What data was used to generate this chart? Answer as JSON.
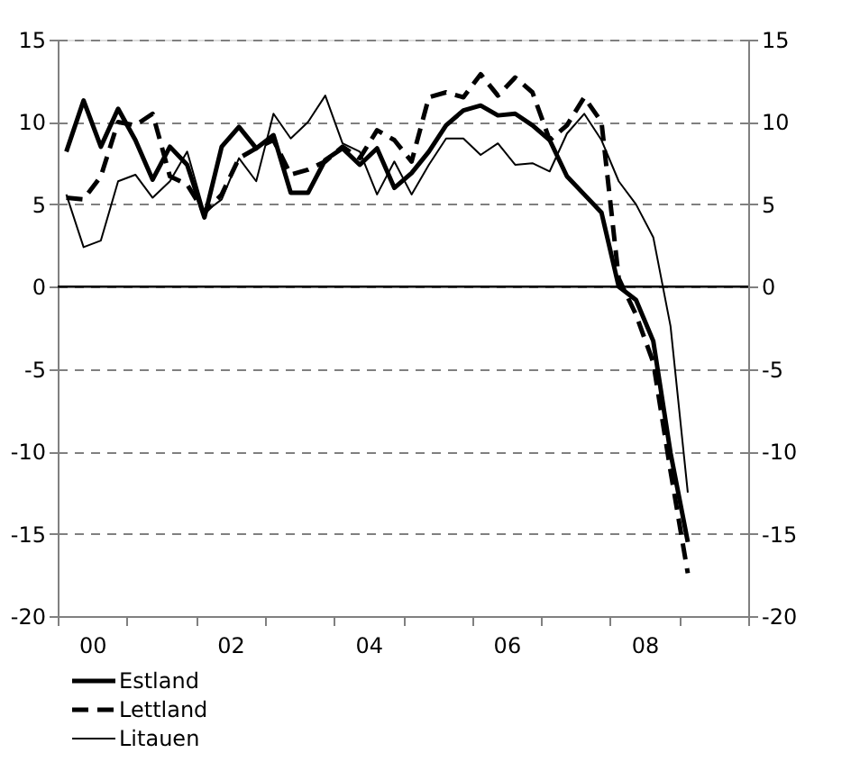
{
  "chart_data": {
    "type": "line",
    "x": [
      -0.375,
      -0.125,
      0.125,
      0.375,
      0.625,
      0.875,
      1.125,
      1.375,
      1.625,
      1.875,
      2.125,
      2.375,
      2.625,
      2.875,
      3.125,
      3.375,
      3.625,
      3.875,
      4.125,
      4.375,
      4.625,
      4.875,
      5.125,
      5.375,
      5.625,
      5.875,
      6.125,
      6.375,
      6.625,
      6.875,
      7.125,
      7.375,
      7.625,
      7.875,
      8.125,
      8.375,
      8.625
    ],
    "series": [
      {
        "name": "Estland",
        "color": "#000000",
        "line_style": "solid",
        "values": [
          8.2,
          11.3,
          8.5,
          10.8,
          8.9,
          6.5,
          8.5,
          7.4,
          4.2,
          8.5,
          9.7,
          8.4,
          9.2,
          5.7,
          5.7,
          7.7,
          8.4,
          7.4,
          8.4,
          6.0,
          6.9,
          8.2,
          9.8,
          10.7,
          11.0,
          10.4,
          10.5,
          9.8,
          8.9,
          6.7,
          5.6,
          4.5,
          0.0,
          -0.8,
          -3.3,
          -10.1,
          -15.5
        ]
      },
      {
        "name": "Lettland",
        "color": "#000000",
        "line_style": "dashed",
        "values": [
          5.4,
          5.3,
          6.7,
          10.0,
          9.8,
          10.5,
          6.7,
          6.2,
          4.5,
          5.6,
          7.8,
          8.4,
          8.9,
          6.8,
          7.1,
          7.6,
          8.5,
          7.8,
          9.5,
          8.9,
          7.6,
          11.5,
          11.8,
          11.5,
          12.9,
          11.6,
          12.7,
          11.8,
          8.9,
          9.8,
          11.5,
          10.0,
          0.5,
          -1.7,
          -4.6,
          -11.2,
          -17.4
        ]
      },
      {
        "name": "Litauen",
        "color": "#000000",
        "line_style": "solid",
        "values": [
          5.6,
          2.4,
          2.8,
          6.4,
          6.8,
          5.4,
          6.4,
          8.2,
          4.5,
          5.3,
          7.8,
          6.4,
          10.5,
          9.0,
          10.0,
          11.6,
          8.7,
          8.2,
          5.6,
          7.6,
          5.6,
          7.4,
          9.0,
          9.0,
          8.0,
          8.7,
          7.4,
          7.5,
          7.0,
          9.3,
          10.5,
          8.9,
          6.4,
          5.0,
          3.0,
          -2.4,
          -12.5
        ]
      }
    ],
    "xlim": [
      -0.5,
      9.5
    ],
    "xticks": [
      {
        "value": -0.5,
        "label": null
      },
      {
        "value": 0,
        "label": "00"
      },
      {
        "value": 0.5,
        "label": null
      },
      {
        "value": 1.5,
        "label": null
      },
      {
        "value": 2,
        "label": "02"
      },
      {
        "value": 2.5,
        "label": null
      },
      {
        "value": 3.5,
        "label": null
      },
      {
        "value": 4,
        "label": "04"
      },
      {
        "value": 4.5,
        "label": null
      },
      {
        "value": 5.5,
        "label": null
      },
      {
        "value": 6,
        "label": "06"
      },
      {
        "value": 6.5,
        "label": null
      },
      {
        "value": 7.5,
        "label": null
      },
      {
        "value": 8,
        "label": "08"
      },
      {
        "value": 8.5,
        "label": null
      },
      {
        "value": 9.5,
        "label": null
      }
    ],
    "ylim": [
      -20,
      15
    ],
    "yticks": [
      -20,
      -15,
      -10,
      -5,
      0,
      5,
      10,
      15
    ],
    "y2lim": [
      -20,
      15
    ],
    "y2ticks": [
      -20,
      -15,
      -10,
      -5,
      0,
      5,
      10,
      15
    ],
    "ref_lines": [
      {
        "axis": "y",
        "value": 0,
        "color": "#000000"
      }
    ],
    "grid": "y",
    "legend": "bottom left",
    "marker": "none"
  }
}
